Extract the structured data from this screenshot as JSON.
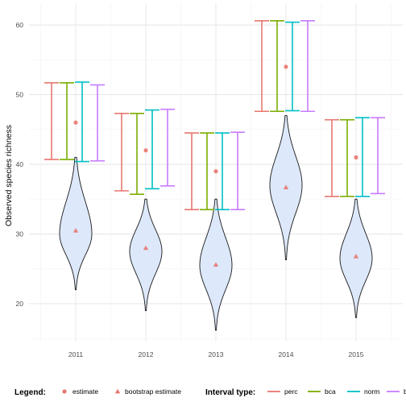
{
  "chart_data": {
    "type": "violin",
    "ylabel": "Observed species richness",
    "xlabel": "",
    "categories": [
      "2011",
      "2012",
      "2013",
      "2014",
      "2015"
    ],
    "y_ticks": [
      20,
      30,
      40,
      50,
      60
    ],
    "ylim": [
      15.2,
      61.5
    ],
    "grid": true,
    "violins": [
      {
        "year": "2011",
        "min": 22.0,
        "max": 41.0,
        "mode": 30.0,
        "width": 0.46
      },
      {
        "year": "2012",
        "min": 19.0,
        "max": 35.0,
        "mode": 27.5,
        "width": 0.46
      },
      {
        "year": "2013",
        "min": 16.2,
        "max": 35.0,
        "mode": 25.5,
        "width": 0.46
      },
      {
        "year": "2014",
        "min": 26.3,
        "max": 47.0,
        "mode": 37.0,
        "width": 0.46
      },
      {
        "year": "2015",
        "min": 18.0,
        "max": 35.0,
        "mode": 26.5,
        "width": 0.46
      }
    ],
    "estimate": [
      46.0,
      42.0,
      39.0,
      54.0,
      41.0
    ],
    "bootstrap_estimate": [
      30.5,
      28.0,
      25.6,
      36.7,
      26.8
    ],
    "intervals": {
      "perc": [
        [
          40.7,
          51.7
        ],
        [
          36.2,
          47.3
        ],
        [
          33.5,
          44.5
        ],
        [
          47.6,
          60.6
        ],
        [
          35.4,
          46.4
        ]
      ],
      "bca": [
        [
          40.7,
          51.7
        ],
        [
          35.7,
          47.3
        ],
        [
          33.5,
          44.5
        ],
        [
          47.6,
          60.6
        ],
        [
          35.4,
          46.4
        ]
      ],
      "norm": [
        [
          40.4,
          51.8
        ],
        [
          36.5,
          47.8
        ],
        [
          33.5,
          44.5
        ],
        [
          47.7,
          60.4
        ],
        [
          35.4,
          46.7
        ]
      ],
      "basic": [
        [
          40.5,
          51.4
        ],
        [
          36.9,
          47.9
        ],
        [
          33.5,
          44.6
        ],
        [
          47.6,
          60.6
        ],
        [
          35.8,
          46.7
        ]
      ]
    },
    "colors": {
      "perc": "#e8776f",
      "bca": "#7cad00",
      "norm": "#00bfc4",
      "basic": "#c77cff",
      "estimate": "#e8776f",
      "bootstrap_estimate": "#e8776f",
      "violin_fill": "#dde8fb",
      "violin_stroke": "#1a1a1a"
    },
    "legend": {
      "position": "bottom",
      "title": "Legend:",
      "entries": [
        {
          "key": "estimate",
          "label": "estimate",
          "shape": "circle"
        },
        {
          "key": "bootstrap_estimate",
          "label": "bootstrap estimate",
          "shape": "triangle"
        }
      ],
      "interval_title": "Interval type:",
      "interval_entries": [
        {
          "key": "perc",
          "label": "perc"
        },
        {
          "key": "bca",
          "label": "bca"
        },
        {
          "key": "norm",
          "label": "norm"
        },
        {
          "key": "basic",
          "label": "basic"
        }
      ]
    }
  }
}
